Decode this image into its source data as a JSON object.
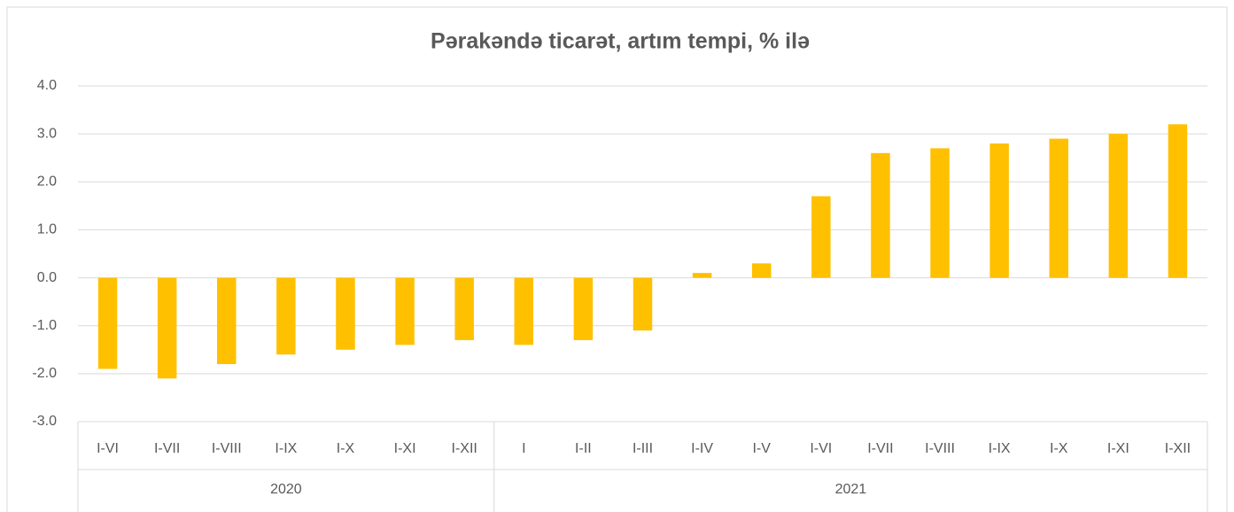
{
  "chart_data": {
    "type": "bar",
    "title": "Pərakəndə ticarət, artım tempi, % ilə",
    "categories": [
      "I-VI",
      "I-VII",
      "I-VIII",
      "I-IX",
      "I-X",
      "I-XI",
      "I-XII",
      "I",
      "I-II",
      "I-III",
      "I-IV",
      "I-V",
      "I-VI",
      "I-VII",
      "I-VIII",
      "I-IX",
      "I-X",
      "I-XI",
      "I-XII"
    ],
    "groups": [
      {
        "label": "2020",
        "size": 7
      },
      {
        "label": "2021",
        "size": 12
      }
    ],
    "values": [
      -1.9,
      -2.1,
      -1.8,
      -1.6,
      -1.5,
      -1.4,
      -1.3,
      -1.4,
      -1.3,
      -1.1,
      0.1,
      0.3,
      1.7,
      2.6,
      2.7,
      2.8,
      2.9,
      3.0,
      3.2
    ],
    "color": "#ffc000",
    "ylim": [
      -3,
      4
    ],
    "yticks": [
      {
        "value": -3,
        "label": "-3.0"
      },
      {
        "value": -2,
        "label": "-2.0"
      },
      {
        "value": -1,
        "label": "-1.0"
      },
      {
        "value": 0,
        "label": "0.0"
      },
      {
        "value": 1,
        "label": "1.0"
      },
      {
        "value": 2,
        "label": "2.0"
      },
      {
        "value": 3,
        "label": "3.0"
      },
      {
        "value": 4,
        "label": "4.0"
      }
    ],
    "grid": true
  }
}
